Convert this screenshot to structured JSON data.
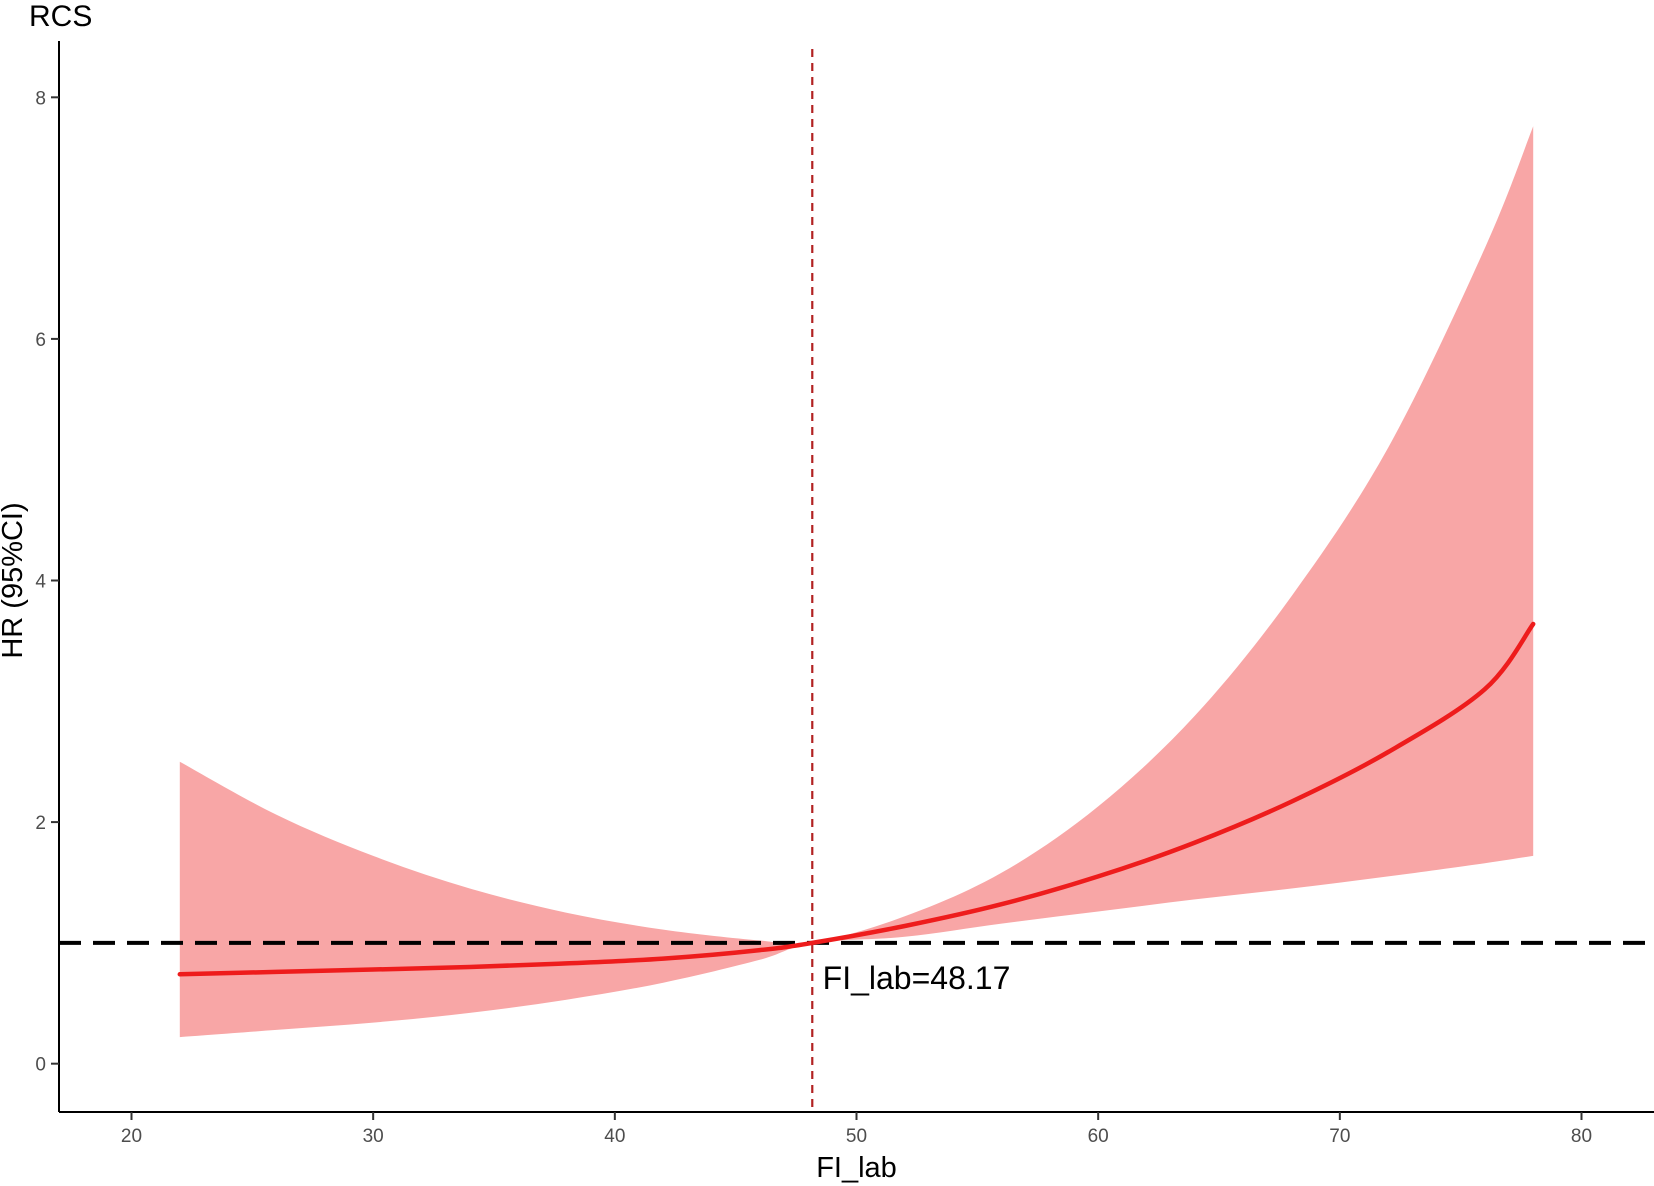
{
  "chart_data": {
    "type": "line",
    "title": "RCS",
    "xlabel": "FI_lab",
    "ylabel": "HR (95%CI)",
    "xlim": [
      17,
      83
    ],
    "ylim": [
      -0.4,
      8.4
    ],
    "xticks": [
      20,
      30,
      40,
      50,
      60,
      70,
      80
    ],
    "yticks": [
      0,
      2,
      4,
      6,
      8
    ],
    "grid": false,
    "series": [
      {
        "x": [
          22,
          26,
          30,
          34,
          38,
          42,
          46,
          48.17,
          52,
          56,
          60,
          64,
          68,
          72,
          76,
          78
        ],
        "y": [
          0.74,
          0.76,
          0.78,
          0.8,
          0.83,
          0.87,
          0.94,
          1.0,
          1.14,
          1.32,
          1.55,
          1.83,
          2.17,
          2.58,
          3.1,
          3.64
        ],
        "color": "#ee1c1c"
      }
    ],
    "confidence_band": {
      "x": [
        22,
        26,
        30,
        34,
        38,
        42,
        46,
        48.17,
        52,
        56,
        60,
        64,
        68,
        72,
        76,
        78
      ],
      "lower": [
        0.22,
        0.28,
        0.34,
        0.42,
        0.53,
        0.67,
        0.86,
        1.0,
        1.05,
        1.16,
        1.26,
        1.36,
        1.45,
        1.55,
        1.66,
        1.72
      ],
      "upper": [
        2.5,
        2.06,
        1.72,
        1.45,
        1.25,
        1.11,
        1.02,
        1.0,
        1.22,
        1.58,
        2.13,
        2.88,
        3.87,
        5.1,
        6.75,
        7.76
      ],
      "color": "#f8a6a6"
    },
    "reference_hline": {
      "y": 1,
      "color": "#000000"
    },
    "reference_vline": {
      "x": 48.17,
      "color": "#b22222"
    },
    "annotation": {
      "text": "FI_lab=48.17",
      "x": 48.6,
      "y": 0.62
    }
  }
}
